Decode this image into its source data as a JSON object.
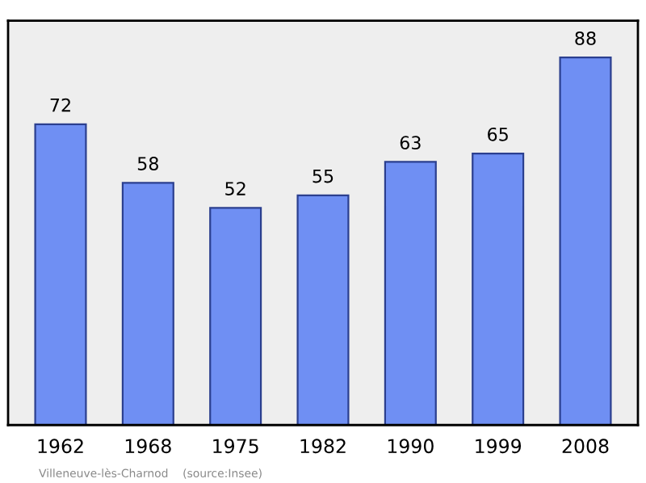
{
  "chart_data": {
    "type": "bar",
    "categories": [
      "1962",
      "1968",
      "1975",
      "1982",
      "1990",
      "1999",
      "2008"
    ],
    "values": [
      72,
      58,
      52,
      55,
      63,
      65,
      88
    ],
    "color": "#6f8ff3",
    "data_labels": true,
    "grid": false,
    "tick_labels": "x",
    "annotations": [
      "Villeneuve-lès-Charnod    (source:Insee)"
    ]
  }
}
